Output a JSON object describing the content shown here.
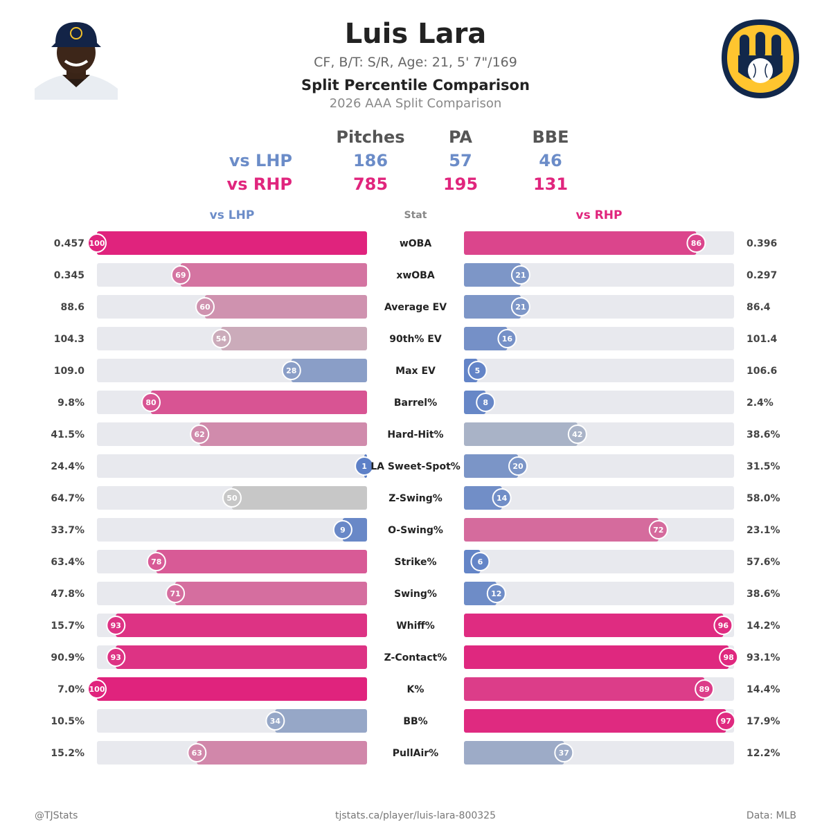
{
  "header": {
    "player_name": "Luis Lara",
    "player_info": "CF, B/T: S/R, Age: 21, 5' 7\"/169",
    "title": "Split Percentile Comparison",
    "subtitle": "2026 AAA Split Comparison"
  },
  "summary": {
    "columns": [
      "Pitches",
      "PA",
      "BBE"
    ],
    "rows": [
      {
        "label": "vs LHP",
        "values": [
          "186",
          "57",
          "46"
        ]
      },
      {
        "label": "vs RHP",
        "values": [
          "785",
          "195",
          "131"
        ]
      }
    ]
  },
  "columns": {
    "left": "vs LHP",
    "stat": "Stat",
    "right": "vs RHP"
  },
  "colors": {
    "high": "#e0237d",
    "mid": "#c7c7c7",
    "low": "#5b7fc7",
    "track": "#e8e9ee"
  },
  "chart_data": {
    "type": "bar",
    "series": [
      {
        "name": "vs LHP",
        "percentiles": [
          100,
          69,
          60,
          54,
          28,
          80,
          62,
          1,
          50,
          9,
          78,
          71,
          93,
          93,
          100,
          34,
          63
        ],
        "values": [
          "0.457",
          "0.345",
          "88.6",
          "104.3",
          "109.0",
          "9.8%",
          "41.5%",
          "24.4%",
          "64.7%",
          "33.7%",
          "63.4%",
          "47.8%",
          "15.7%",
          "90.9%",
          "7.0%",
          "10.5%",
          "15.2%"
        ]
      },
      {
        "name": "vs RHP",
        "percentiles": [
          86,
          21,
          21,
          16,
          5,
          8,
          42,
          20,
          14,
          72,
          6,
          12,
          96,
          98,
          89,
          97,
          37
        ],
        "values": [
          "0.396",
          "0.297",
          "86.4",
          "101.4",
          "106.6",
          "2.4%",
          "38.6%",
          "31.5%",
          "58.0%",
          "23.1%",
          "57.6%",
          "38.6%",
          "14.2%",
          "93.1%",
          "14.4%",
          "17.9%",
          "12.2%"
        ]
      }
    ],
    "categories": [
      "wOBA",
      "xwOBA",
      "Average EV",
      "90th% EV",
      "Max EV",
      "Barrel%",
      "Hard-Hit%",
      "LA Sweet-Spot%",
      "Z-Swing%",
      "O-Swing%",
      "Strike%",
      "Swing%",
      "Whiff%",
      "Z-Contact%",
      "K%",
      "BB%",
      "PullAir%"
    ],
    "xlim": [
      0,
      100
    ]
  },
  "footer": {
    "left": "@TJStats",
    "center": "tjstats.ca/player/luis-lara-800325",
    "right": "Data: MLB"
  }
}
